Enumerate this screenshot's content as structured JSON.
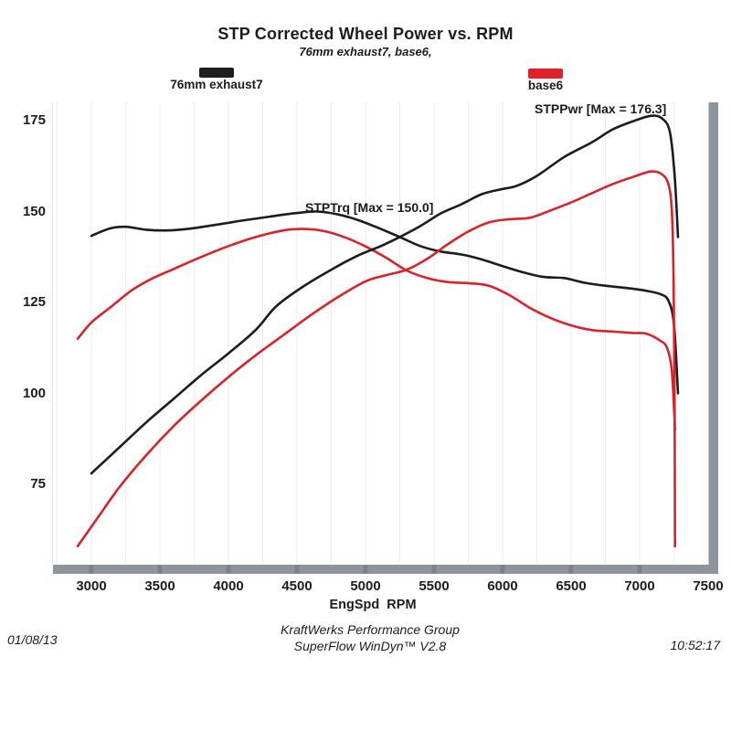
{
  "title": "STP Corrected Wheel Power vs. RPM",
  "subtitle": "76mm exhaust7, base6,",
  "legend": {
    "items": [
      {
        "label": "76mm exhaust7",
        "color": "#1e1e1e"
      },
      {
        "label": "base6",
        "color": "#e02127"
      }
    ]
  },
  "annotations": [
    {
      "text": "STPPwr [Max = 176.3]"
    },
    {
      "text": "STPTrq [Max = 150.0]"
    }
  ],
  "footer": {
    "date": "01/08/13",
    "time": "10:52:17",
    "company": "KraftWerks Performance Group",
    "software": "SuperFlow WinDyn™ V2.8"
  },
  "colors": {
    "black_run": "#1c1c1c",
    "red_run": "#d8232a",
    "axis_bar": "#8d949b",
    "axis_tick": "#6e757c",
    "gridline": "#ededed",
    "left_edge": "#e2e2e2"
  },
  "chart_data": {
    "type": "line",
    "title": "STP Corrected Wheel Power vs. RPM",
    "subtitle": "76mm exhaust7, base6,",
    "xlabel": "EngSpd  RPM",
    "ylabel": "",
    "x_ticks": [
      3000,
      3500,
      4000,
      4500,
      5000,
      5500,
      6000,
      6500,
      7000,
      7500
    ],
    "y_ticks": [
      175,
      150,
      125,
      100,
      75
    ],
    "xlim": [
      2700,
      7600
    ],
    "ylim": [
      50,
      185
    ],
    "grid": "faint-vertical",
    "legend_position": "top",
    "series": [
      {
        "id": "stptrq-base6-curve",
        "name": "STPTrq — base6",
        "color": "#d8232a",
        "points": [
          [
            2900,
            115
          ],
          [
            3000,
            119.5
          ],
          [
            3150,
            124
          ],
          [
            3300,
            128.5
          ],
          [
            3450,
            131.7
          ],
          [
            3600,
            134.2
          ],
          [
            3800,
            137.5
          ],
          [
            4000,
            140.5
          ],
          [
            4200,
            143
          ],
          [
            4400,
            144.8
          ],
          [
            4550,
            145.2
          ],
          [
            4700,
            144.6
          ],
          [
            4850,
            142.9
          ],
          [
            5000,
            140.4
          ],
          [
            5150,
            137.3
          ],
          [
            5300,
            133.8
          ],
          [
            5450,
            131.7
          ],
          [
            5600,
            130.6
          ],
          [
            5750,
            130.3
          ],
          [
            5900,
            129.6
          ],
          [
            6050,
            127
          ],
          [
            6200,
            123.5
          ],
          [
            6350,
            120.7
          ],
          [
            6500,
            118.7
          ],
          [
            6650,
            117.4
          ],
          [
            6800,
            117
          ],
          [
            6950,
            116.6
          ],
          [
            7050,
            116.4
          ],
          [
            7150,
            114.5
          ],
          [
            7200,
            112.5
          ],
          [
            7235,
            106
          ],
          [
            7258,
            90
          ]
        ]
      },
      {
        "id": "stptrq-76mm-curve",
        "name": "STPTrq — 76mm exhaust7",
        "color": "#1c1c1c",
        "max": 150.0,
        "points": [
          [
            3000,
            143.3
          ],
          [
            3130,
            145.3
          ],
          [
            3250,
            145.8
          ],
          [
            3400,
            145
          ],
          [
            3550,
            144.8
          ],
          [
            3700,
            145.2
          ],
          [
            3900,
            146.3
          ],
          [
            4100,
            147.5
          ],
          [
            4300,
            148.6
          ],
          [
            4500,
            149.6
          ],
          [
            4650,
            150
          ],
          [
            4800,
            149.2
          ],
          [
            4950,
            147.6
          ],
          [
            5100,
            145.4
          ],
          [
            5250,
            143
          ],
          [
            5400,
            140.5
          ],
          [
            5550,
            139
          ],
          [
            5700,
            138.2
          ],
          [
            5850,
            136.8
          ],
          [
            6000,
            135
          ],
          [
            6150,
            133.3
          ],
          [
            6300,
            132
          ],
          [
            6450,
            131.7
          ],
          [
            6600,
            130.4
          ],
          [
            6750,
            129.6
          ],
          [
            6900,
            129
          ],
          [
            7050,
            128.2
          ],
          [
            7150,
            127.3
          ],
          [
            7210,
            125.5
          ],
          [
            7250,
            119
          ],
          [
            7280,
            100
          ]
        ]
      },
      {
        "id": "stppwr-base6-curve",
        "name": "STPPwr — base6",
        "color": "#d8232a",
        "points": [
          [
            2900,
            58
          ],
          [
            3050,
            66
          ],
          [
            3200,
            74
          ],
          [
            3400,
            83
          ],
          [
            3600,
            91
          ],
          [
            3800,
            98
          ],
          [
            4000,
            104.5
          ],
          [
            4200,
            110.5
          ],
          [
            4400,
            116
          ],
          [
            4600,
            121.5
          ],
          [
            4800,
            126.5
          ],
          [
            5000,
            130.8
          ],
          [
            5150,
            132.5
          ],
          [
            5300,
            134
          ],
          [
            5450,
            137
          ],
          [
            5600,
            141
          ],
          [
            5750,
            144.5
          ],
          [
            5900,
            147
          ],
          [
            6050,
            147.9
          ],
          [
            6200,
            148.3
          ],
          [
            6350,
            150.3
          ],
          [
            6500,
            152.5
          ],
          [
            6650,
            155
          ],
          [
            6800,
            157.5
          ],
          [
            6950,
            159.5
          ],
          [
            7080,
            161
          ],
          [
            7160,
            160.3
          ],
          [
            7210,
            157.5
          ],
          [
            7235,
            150
          ],
          [
            7248,
            130
          ],
          [
            7255,
            95
          ],
          [
            7258,
            58
          ]
        ]
      },
      {
        "id": "stppwr-76mm-curve",
        "name": "STPPwr — 76mm exhaust7",
        "color": "#1c1c1c",
        "max": 176.3,
        "points": [
          [
            3000,
            78
          ],
          [
            3200,
            85
          ],
          [
            3400,
            92
          ],
          [
            3600,
            98.5
          ],
          [
            3800,
            105
          ],
          [
            4000,
            111
          ],
          [
            4200,
            117.5
          ],
          [
            4350,
            124
          ],
          [
            4550,
            129.5
          ],
          [
            4750,
            134
          ],
          [
            4950,
            138
          ],
          [
            5100,
            140.3
          ],
          [
            5250,
            143
          ],
          [
            5400,
            146
          ],
          [
            5550,
            149.5
          ],
          [
            5700,
            152
          ],
          [
            5850,
            154.8
          ],
          [
            6000,
            156.2
          ],
          [
            6100,
            157
          ],
          [
            6250,
            159.8
          ],
          [
            6450,
            165
          ],
          [
            6650,
            169
          ],
          [
            6800,
            172.5
          ],
          [
            6950,
            174.8
          ],
          [
            7080,
            176.3
          ],
          [
            7160,
            175.7
          ],
          [
            7220,
            172
          ],
          [
            7255,
            160
          ],
          [
            7280,
            143
          ]
        ]
      }
    ]
  }
}
